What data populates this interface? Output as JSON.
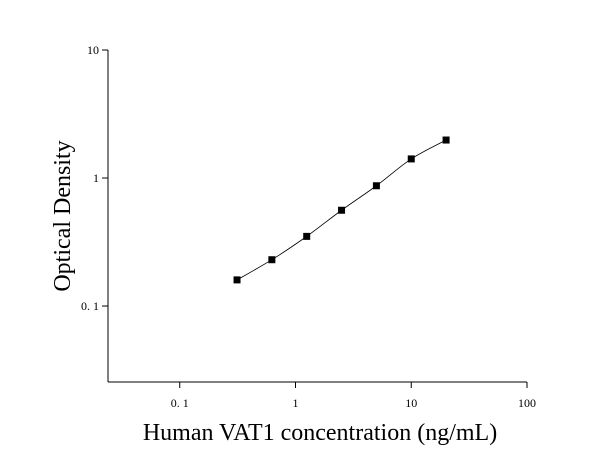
{
  "chart_data": {
    "type": "scatter",
    "x_label": "Human VAT1 concentration (ng/mL)",
    "y_label": "Optical Density",
    "x": [
      0.3125,
      0.625,
      1.25,
      2.5,
      5,
      10,
      20
    ],
    "series": [
      {
        "values": [
          0.16,
          0.23,
          0.35,
          0.56,
          0.87,
          1.41,
          1.98
        ],
        "color": "#000000"
      }
    ],
    "xlim": [
      0.024,
      100
    ],
    "ylim": [
      0.0255,
      10
    ],
    "xticks": [
      {
        "value": 0.1,
        "label": "0. 1"
      },
      1,
      10,
      100
    ],
    "yticks": [
      {
        "value": 0.1,
        "label": "0. 1"
      },
      1,
      10
    ],
    "xscale": "log",
    "yscale": "log",
    "fit_curve": true,
    "grid": false
  }
}
